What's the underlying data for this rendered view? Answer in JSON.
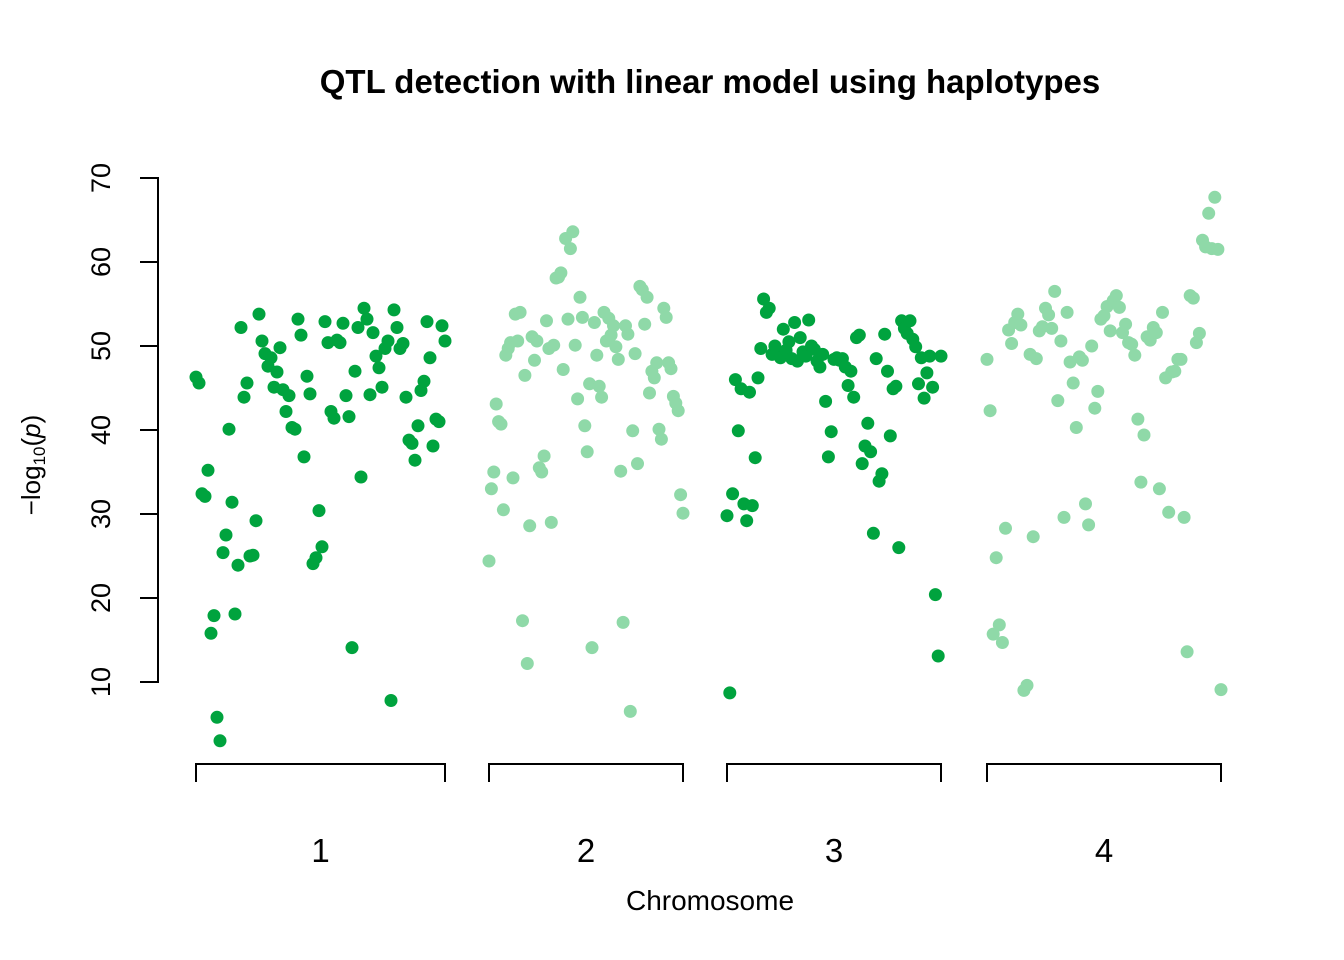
{
  "chart_data": {
    "type": "scatter",
    "title": "QTL detection with linear model using haplotypes",
    "xlabel": "Chromosome",
    "ylabel": "−log10(p)",
    "ylabel_parts": {
      "prefix": "−log",
      "subscript": "10",
      "paren_open": "(",
      "italic": "p",
      "paren_close": ")"
    },
    "ylim": [
      0,
      70
    ],
    "yticks": [
      10,
      20,
      30,
      40,
      50,
      60,
      70
    ],
    "colors": {
      "odd": "#00A33E",
      "even": "#8FD9A8"
    },
    "chromosomes": [
      {
        "name": "1",
        "values": [
          46.3,
          45.6,
          32.4,
          32.1,
          35.2,
          15.8,
          17.9,
          5.8,
          3.0,
          25.4,
          27.5,
          40.1,
          31.4,
          18.1,
          23.9,
          52.2,
          43.9,
          45.6,
          25.0,
          25.1,
          29.2,
          53.8,
          50.6,
          49.1,
          47.6,
          48.6,
          45.1,
          46.9,
          49.8,
          44.8,
          42.2,
          44.1,
          40.3,
          40.1,
          53.2,
          51.3,
          36.8,
          46.4,
          44.3,
          24.1,
          24.8,
          30.4,
          26.1,
          52.9,
          50.4,
          42.2,
          41.4,
          50.7,
          50.4,
          52.7,
          44.1,
          41.6,
          14.1,
          47.0,
          52.2,
          34.4,
          54.5,
          53.2,
          44.2,
          51.6,
          48.8,
          47.4,
          45.1,
          49.7,
          50.6,
          7.8,
          54.3,
          52.2,
          49.7,
          50.3,
          43.9,
          38.8,
          38.4,
          36.4,
          40.5,
          44.7,
          45.8,
          52.9,
          48.6,
          38.1,
          41.3,
          41.0,
          52.4,
          50.6
        ]
      },
      {
        "name": "2",
        "values": [
          24.4,
          33.0,
          35.0,
          43.1,
          41.0,
          40.7,
          30.5,
          48.9,
          49.7,
          50.4,
          34.3,
          53.8,
          50.6,
          54.0,
          17.3,
          46.5,
          12.2,
          28.6,
          51.1,
          48.3,
          50.6,
          35.5,
          35.0,
          36.9,
          53.0,
          49.7,
          29.0,
          50.1,
          58.1,
          58.2,
          58.7,
          47.2,
          62.8,
          53.2,
          61.6,
          63.6,
          50.1,
          43.7,
          55.8,
          53.4,
          40.5,
          37.4,
          45.5,
          14.1,
          52.8,
          48.9,
          45.2,
          43.9,
          54.0,
          50.6,
          53.3,
          51.3,
          52.4,
          49.9,
          48.4,
          35.1,
          17.1,
          52.4,
          51.4,
          6.5,
          39.9,
          49.1,
          36.0,
          57.1,
          56.7,
          52.6,
          55.8,
          44.4,
          47.0,
          46.2,
          48.0,
          40.1,
          38.9,
          54.5,
          53.4,
          48.0,
          47.3,
          44.0,
          43.2,
          42.3,
          32.3,
          30.1
        ]
      },
      {
        "name": "3",
        "values": [
          29.8,
          8.7,
          32.4,
          46.0,
          39.9,
          44.9,
          31.2,
          29.2,
          44.5,
          31.0,
          36.7,
          46.2,
          49.7,
          55.6,
          54.0,
          54.5,
          49.0,
          50.0,
          49.3,
          48.6,
          52.0,
          49.5,
          50.5,
          48.5,
          52.8,
          48.2,
          51.0,
          49.3,
          48.8,
          53.1,
          50.0,
          49.6,
          48.2,
          47.5,
          49.0,
          43.4,
          36.8,
          39.8,
          48.4,
          48.6,
          48.3,
          48.5,
          47.5,
          45.3,
          47.0,
          43.9,
          51.0,
          51.3,
          36.0,
          38.1,
          40.8,
          37.4,
          27.7,
          48.5,
          33.9,
          34.8,
          51.4,
          47.0,
          39.3,
          44.9,
          45.2,
          26.0,
          53.0,
          52.1,
          51.5,
          53.0,
          50.8,
          49.9,
          45.5,
          48.6,
          43.8,
          46.8,
          48.8,
          45.1,
          20.4,
          13.1,
          48.8
        ]
      },
      {
        "name": "4",
        "values": [
          48.4,
          42.3,
          15.7,
          24.8,
          16.8,
          14.7,
          28.3,
          51.9,
          50.3,
          52.8,
          53.8,
          52.5,
          9.0,
          9.6,
          49.0,
          27.3,
          48.5,
          51.8,
          52.3,
          54.5,
          53.7,
          52.1,
          56.5,
          43.5,
          50.6,
          29.6,
          54.0,
          48.1,
          45.6,
          40.3,
          48.7,
          48.3,
          31.2,
          28.7,
          50.0,
          42.6,
          44.6,
          53.2,
          53.6,
          54.7,
          51.8,
          55.4,
          56.0,
          54.6,
          51.6,
          52.6,
          50.4,
          50.2,
          48.9,
          41.3,
          33.8,
          39.4,
          51.1,
          50.7,
          52.2,
          51.6,
          33.0,
          54.0,
          46.2,
          30.2,
          46.9,
          47.0,
          48.4,
          48.4,
          29.6,
          13.6,
          56.0,
          55.7,
          50.4,
          51.5,
          62.6,
          61.8,
          65.8,
          61.6,
          67.7,
          61.5,
          9.1
        ]
      }
    ]
  }
}
